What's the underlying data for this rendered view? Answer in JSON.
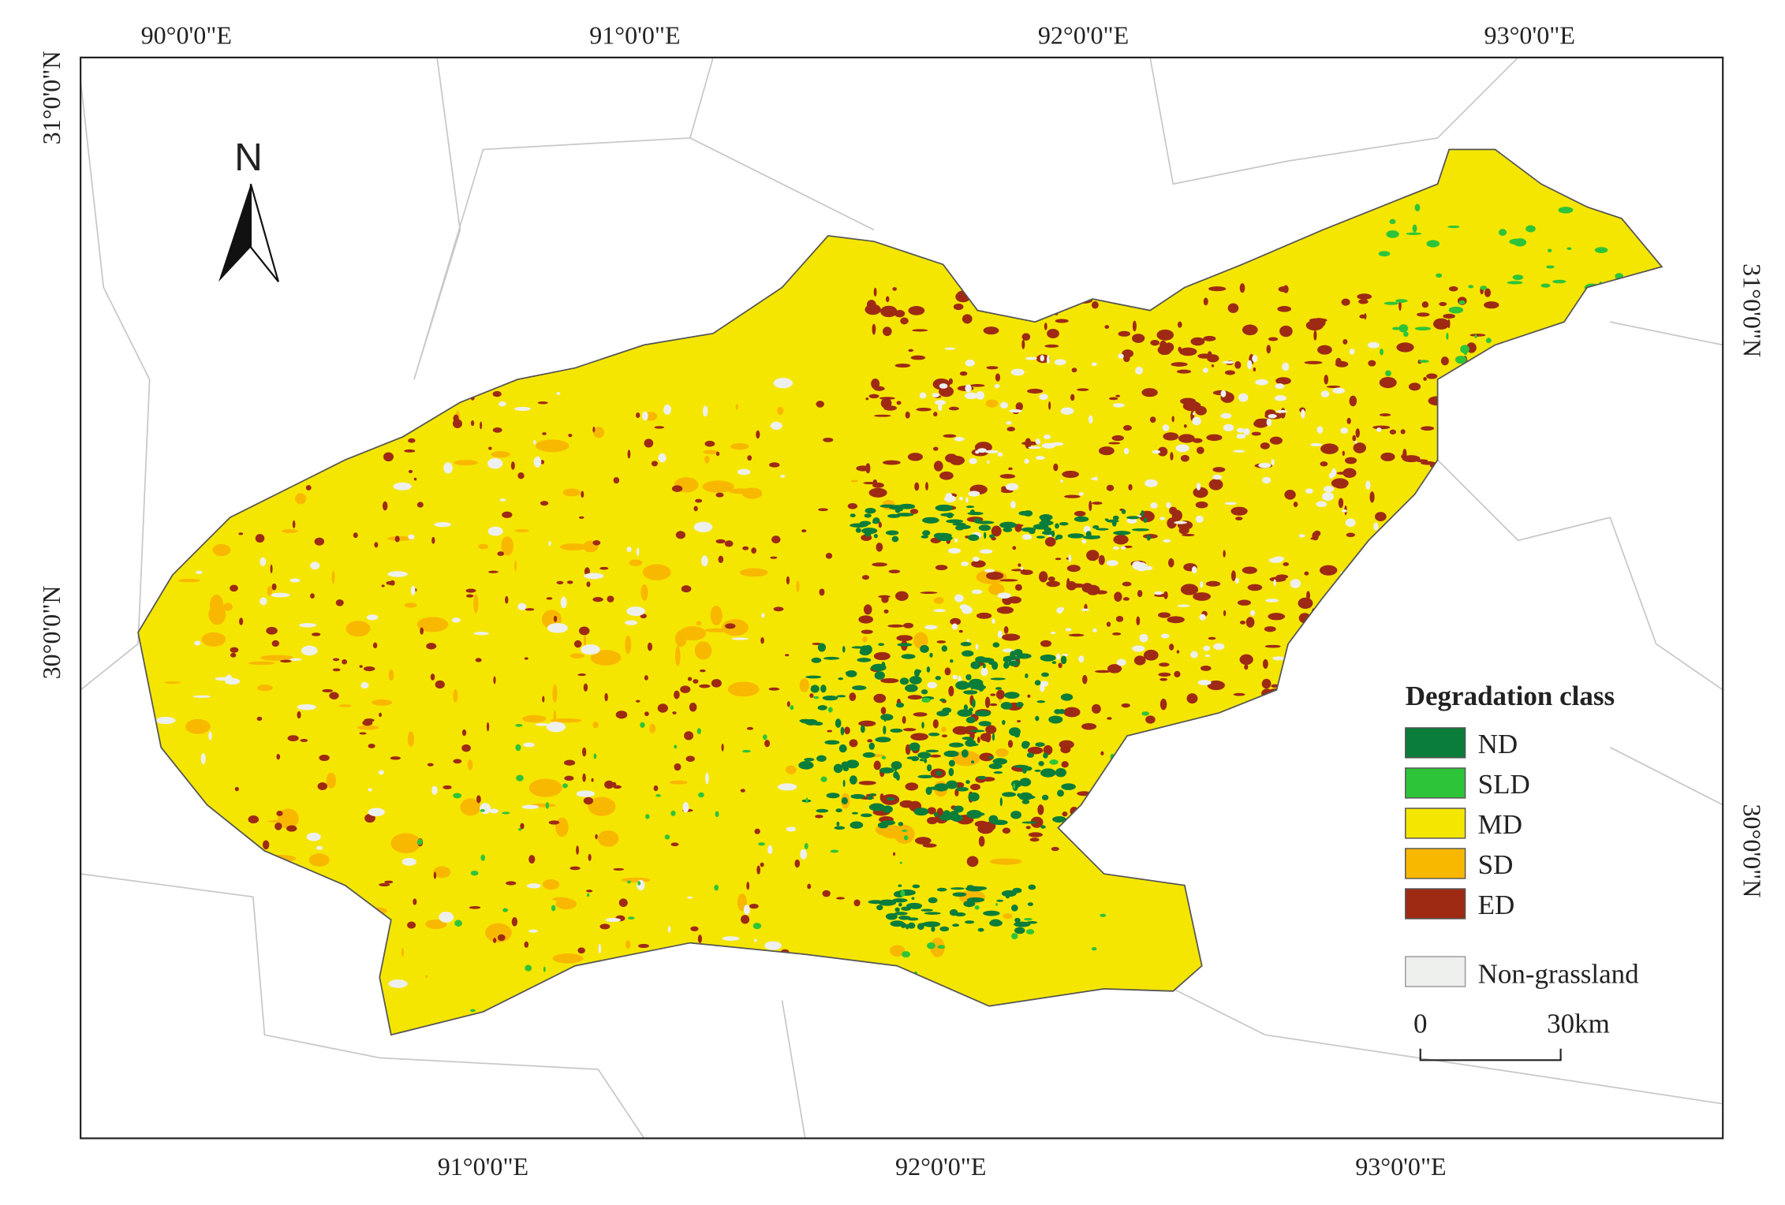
{
  "map": {
    "graticule": {
      "top": [
        "90°0'0\"E",
        "91°0'0\"E",
        "92°0'0\"E",
        "93°0'0\"E"
      ],
      "bottom": [
        "91°0'0\"E",
        "92°0'0\"E",
        "93°0'0\"E"
      ],
      "left": [
        "31°0'0\"N",
        "30°0'0\"N"
      ],
      "right": [
        "31°0'0\"N",
        "30°0'0\"N"
      ]
    },
    "north_label": "N",
    "legend": {
      "title": "Degradation class",
      "items": [
        {
          "label": "ND",
          "color": "#0b7d3a"
        },
        {
          "label": "SLD",
          "color": "#2ec43a"
        },
        {
          "label": "MD",
          "color": "#f5e600"
        },
        {
          "label": "SD",
          "color": "#f9b800"
        },
        {
          "label": "ED",
          "color": "#9e2a14"
        }
      ],
      "non_grassland": {
        "label": "Non-grassland",
        "color": "#eef0ee"
      }
    },
    "scale_bar": {
      "labels": [
        "0",
        "30km"
      ]
    }
  }
}
